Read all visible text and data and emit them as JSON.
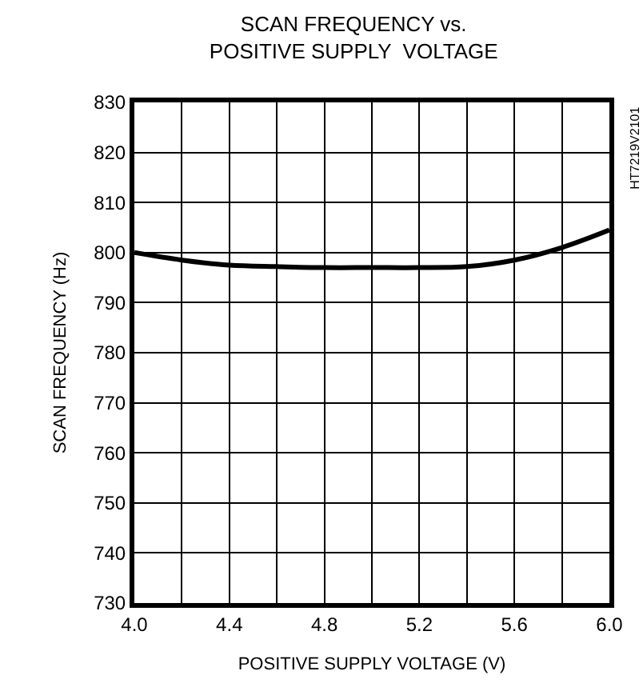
{
  "chart_data": {
    "type": "line",
    "title": "SCAN FREQUENCY vs.\nPOSITIVE SUPPLY  VOLTAGE",
    "xlabel": "POSITIVE SUPPLY VOLTAGE (V)",
    "ylabel": "SCAN FREQUENCY (Hz)",
    "annotations": [
      "HT7219V2101"
    ],
    "x": [
      4.0,
      4.2,
      4.4,
      4.6,
      4.8,
      5.0,
      5.2,
      5.4,
      5.6,
      5.8,
      6.0
    ],
    "series": [
      {
        "color": "#000000",
        "values": [
          800,
          798.5,
          797.5,
          797.2,
          797,
          797,
          797,
          797.2,
          798.5,
          801,
          804.5
        ]
      }
    ],
    "xlim": [
      4.0,
      6.0
    ],
    "xticks": [
      {
        "value": 4.0,
        "label": "4.0"
      },
      {
        "value": 4.2,
        "label": null
      },
      4.4,
      {
        "value": 4.6,
        "label": null
      },
      4.8,
      {
        "value": 5.0,
        "label": null
      },
      5.2,
      {
        "value": 5.4,
        "label": null
      },
      5.6,
      {
        "value": 5.8,
        "label": null
      },
      {
        "value": 6.0,
        "label": "6.0"
      }
    ],
    "ylim": [
      730,
      830
    ],
    "yticks": [
      730,
      740,
      750,
      760,
      770,
      780,
      790,
      800,
      810,
      820,
      830
    ],
    "grid": true,
    "marker": "none",
    "line_style": "solid"
  }
}
